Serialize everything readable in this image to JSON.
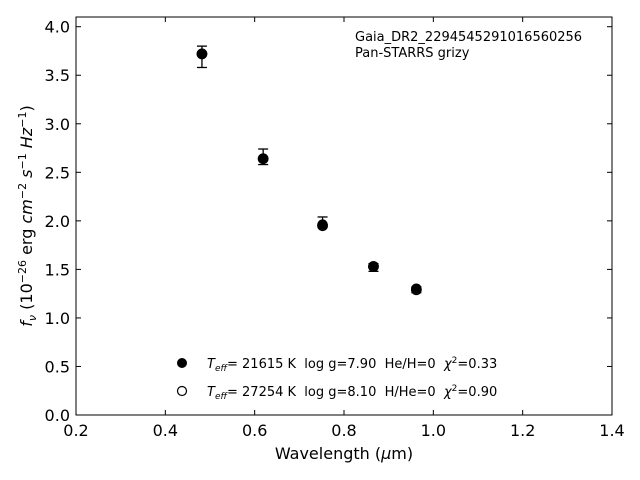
{
  "chart_data": {
    "type": "scatter",
    "title": "",
    "annotation": {
      "line1": "Gaia_DR2_2294545291016560256",
      "line2": "Pan-STARRS grizy"
    },
    "xlabel": {
      "text": "Wavelength (",
      "math": "μ",
      "unit_tail": "m)"
    },
    "ylabel": {
      "f": "f",
      "nu": "ν",
      "pre": " (10",
      "exp1": "−26",
      "mid": " erg ",
      "cm": "cm",
      "exp2": "−2",
      "s": " s",
      "exp3": "−1",
      "hz": " Hz",
      "exp4": "−1",
      "close": ")"
    },
    "xlim": [
      0.2,
      1.4
    ],
    "ylim": [
      0.0,
      4.1
    ],
    "xticks": [
      "0.2",
      "0.4",
      "0.6",
      "0.8",
      "1.0",
      "1.2",
      "1.4"
    ],
    "xtick_values": [
      0.2,
      0.4,
      0.6,
      0.8,
      1.0,
      1.2,
      1.4
    ],
    "yticks": [
      "0.0",
      "0.5",
      "1.0",
      "1.5",
      "2.0",
      "2.5",
      "3.0",
      "3.5",
      "4.0"
    ],
    "ytick_values": [
      0.0,
      0.5,
      1.0,
      1.5,
      2.0,
      2.5,
      3.0,
      3.5,
      4.0
    ],
    "grid": false,
    "legend_placement": "lower-center",
    "observed": {
      "x": [
        0.482,
        0.619,
        0.752,
        0.866,
        0.962
      ],
      "y": [
        3.69,
        2.66,
        1.99,
        1.52,
        1.29
      ],
      "yerr": [
        0.11,
        0.08,
        0.05,
        0.04,
        0.03
      ]
    },
    "series": [
      {
        "marker": "filled-circle",
        "teff_label": "T",
        "teff_sub": "eff",
        "params": "= 21615 K  log g=7.90  He/H=0  ",
        "chi": "χ",
        "chi_sup": "2",
        "chi_val": "=0.33",
        "x": [
          0.482,
          0.619,
          0.752,
          0.866,
          0.962
        ],
        "y": [
          3.72,
          2.64,
          1.96,
          1.53,
          1.3
        ]
      },
      {
        "marker": "open-circle",
        "teff_label": "T",
        "teff_sub": "eff",
        "params": "= 27254 K  log g=8.10  H/He=0  ",
        "chi": "χ",
        "chi_sup": "2",
        "chi_val": "=0.90",
        "x": [
          0.482,
          0.619,
          0.752,
          0.866,
          0.962
        ],
        "y": [
          3.72,
          2.64,
          1.95,
          1.53,
          1.29
        ]
      }
    ]
  }
}
